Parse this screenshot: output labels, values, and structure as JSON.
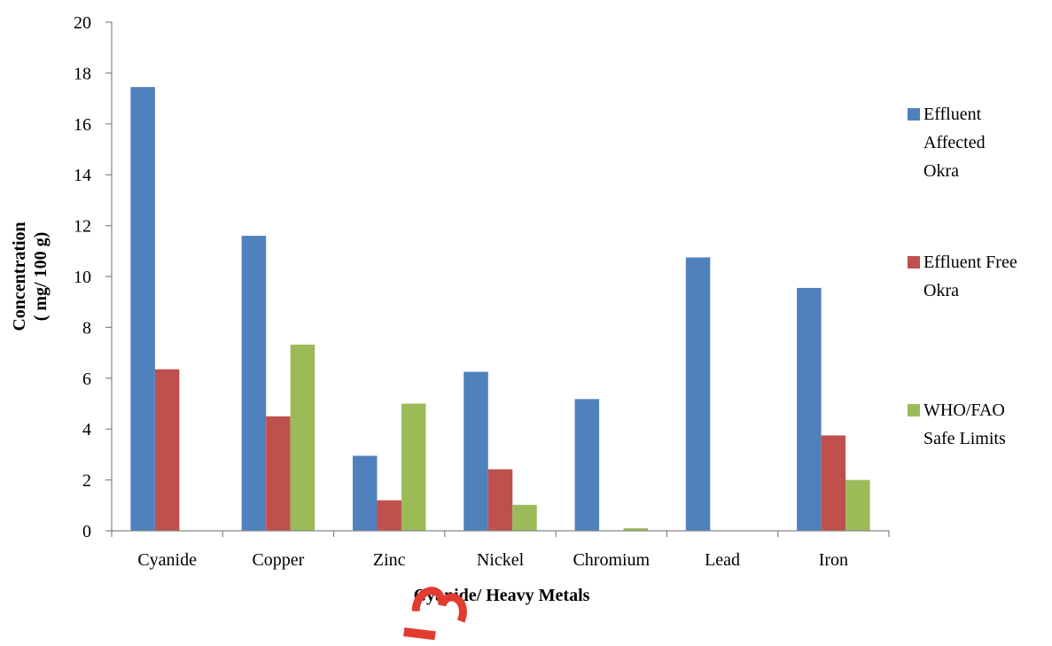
{
  "chart_data": {
    "type": "bar",
    "title": "",
    "xlabel": "Cyanide/ Heavy Metals",
    "ylabel_lines": [
      "Concentration",
      "( mg/ 100 g)"
    ],
    "categories": [
      "Cyanide",
      "Copper",
      "Zinc",
      "Nickel",
      "Chromium",
      "Lead",
      "Iron"
    ],
    "ylim": [
      0,
      20
    ],
    "yticks": [
      0,
      2,
      4,
      6,
      8,
      10,
      12,
      14,
      16,
      18,
      20
    ],
    "grid": false,
    "legend_position": "right",
    "series": [
      {
        "name_lines": [
          "Effluent",
          "Affected",
          "Okra"
        ],
        "color": "#4f81bd",
        "values": [
          17.45,
          11.6,
          2.95,
          6.25,
          5.18,
          10.75,
          9.55
        ]
      },
      {
        "name_lines": [
          "Effluent Free",
          "Okra"
        ],
        "color": "#c0504d",
        "values": [
          6.35,
          4.5,
          1.2,
          2.42,
          0,
          0,
          3.75
        ]
      },
      {
        "name_lines": [
          "WHO/FAO",
          "Safe Limits"
        ],
        "color": "#9bbb59",
        "values": [
          0,
          7.32,
          5.0,
          1.02,
          0.1,
          0,
          2.0
        ]
      }
    ]
  },
  "watermark": {
    "color": "#e23b31"
  }
}
